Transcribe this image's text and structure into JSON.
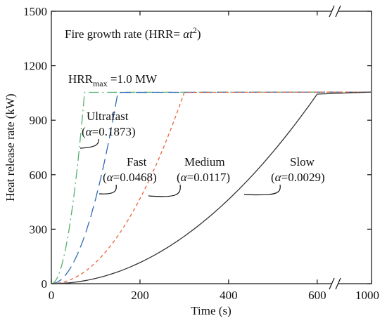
{
  "chart_data": {
    "type": "line",
    "title": "Fire growth rate (HRR= αt²)",
    "title_parts": {
      "prefix": "Fire growth rate (HRR= ",
      "alpha": "α",
      "t": "t",
      "sup": "2",
      "suffix": ")"
    },
    "xlabel": "Time (s)",
    "ylabel": "Heat release rate (kW)",
    "xlim": [
      0,
      1000
    ],
    "ylim": [
      0,
      1500
    ],
    "x_ticks": [
      "0",
      "200",
      "400",
      "600",
      "1000"
    ],
    "y_ticks": [
      "0",
      "300",
      "600",
      "900",
      "1200",
      "1500"
    ],
    "axis_break": {
      "x_from": 640,
      "x_to": 950,
      "break_at": 640
    },
    "hrr_max_label": {
      "main": "HRR",
      "sub": "max",
      "rest": " =1.0 MW"
    },
    "hrr_max_value": 1055,
    "grid": false,
    "legend": "none",
    "series": [
      {
        "name": "Ultrafast",
        "alpha_text": "0.1873",
        "alpha": 0.1873,
        "color": "#55b06e",
        "dash": "14,5,2,5",
        "t_max": 75
      },
      {
        "name": "Fast",
        "alpha_text": "0.0468",
        "alpha": 0.0468,
        "color": "#2f6bb5",
        "dash": "16,7",
        "t_max": 150
      },
      {
        "name": "Medium",
        "alpha_text": "0.0117",
        "alpha": 0.0117,
        "color": "#e8643a",
        "dash": "5,4",
        "t_max": 300
      },
      {
        "name": "Slow",
        "alpha_text": "0.0029",
        "alpha": 0.0029,
        "color": "#333333",
        "dash": "",
        "t_max": 600
      }
    ]
  }
}
